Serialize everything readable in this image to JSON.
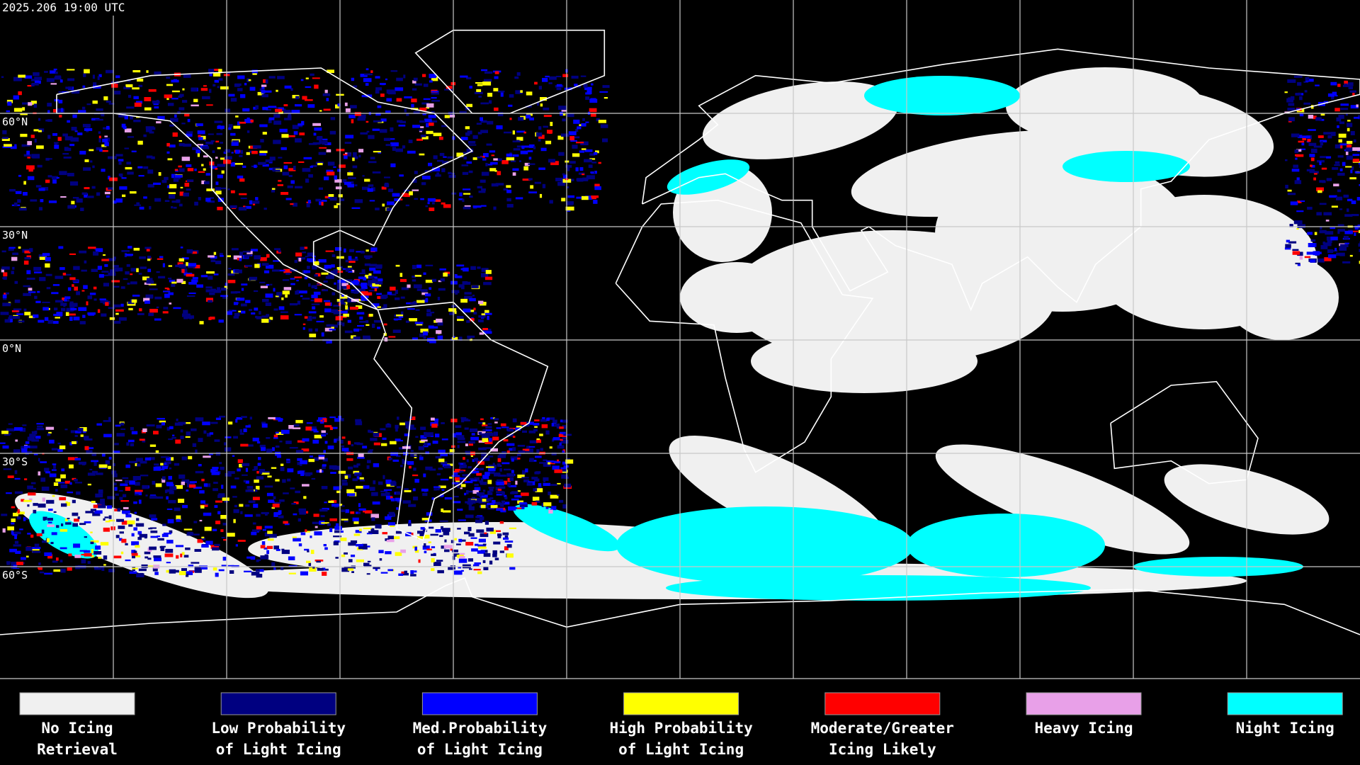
{
  "header": {
    "timestamp": "2025.206 19:00 UTC"
  },
  "latitude_labels": [
    "60°N",
    "30°N",
    "0°N",
    "30°S",
    "60°S"
  ],
  "legend": [
    {
      "label_lines": [
        "No Icing",
        "Retrieval"
      ],
      "color": "#f0f0f0"
    },
    {
      "label_lines": [
        "Low Probability",
        "of Light Icing"
      ],
      "color": "#000080"
    },
    {
      "label_lines": [
        "Med.Probability",
        "of Light Icing"
      ],
      "color": "#0000ff"
    },
    {
      "label_lines": [
        "High Probability",
        "of Light Icing"
      ],
      "color": "#ffff00"
    },
    {
      "label_lines": [
        "Moderate/Greater",
        "Icing Likely"
      ],
      "color": "#ff0000"
    },
    {
      "label_lines": [
        "Heavy Icing"
      ],
      "color": "#e8a0e8"
    },
    {
      "label_lines": [
        "Night Icing"
      ],
      "color": "#00ffff"
    }
  ]
}
